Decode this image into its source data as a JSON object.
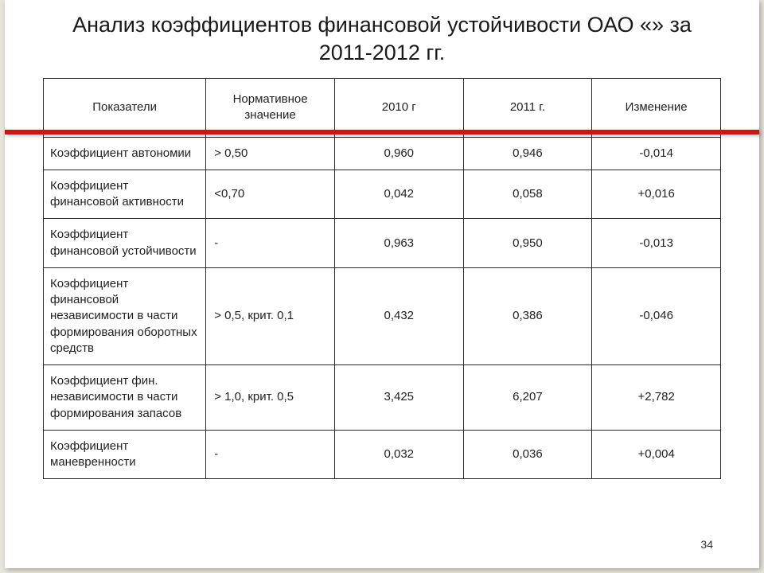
{
  "title": "Анализ коэффициентов финансовой устойчивости ОАО «» за 2011-2012 гг.",
  "page_number": "34",
  "accent_color": "#c71818",
  "table": {
    "columns": [
      "Показатели",
      "Нормативное значение",
      "2010 г",
      "2011 г.",
      "Изменение"
    ],
    "rows": [
      {
        "name": "Коэффициент автономии",
        "norm": "> 0,50",
        "y2010": "0,960",
        "y2011": "0,946",
        "change": "-0,014"
      },
      {
        "name": "Коэффициент финансовой активности",
        "norm": "<0,70",
        "y2010": "0,042",
        "y2011": "0,058",
        "change": "+0,016"
      },
      {
        "name": "Коэффициент финансовой устойчивости",
        "norm": "-",
        "y2010": "0,963",
        "y2011": "0,950",
        "change": "-0,013"
      },
      {
        "name": "Коэффициент финансовой независимости в части формирования оборотных средств",
        "norm": "> 0,5, крит. 0,1",
        "y2010": "0,432",
        "y2011": "0,386",
        "change": "-0,046"
      },
      {
        "name": "Коэффициент фин. независимости в части формирования запасов",
        "norm": "> 1,0, крит. 0,5",
        "y2010": "3,425",
        "y2011": "6,207",
        "change": "+2,782"
      },
      {
        "name": "Коэффициент маневренности",
        "norm": "-",
        "y2010": "0,032",
        "y2011": "0,036",
        "change": "+0,004"
      }
    ]
  }
}
